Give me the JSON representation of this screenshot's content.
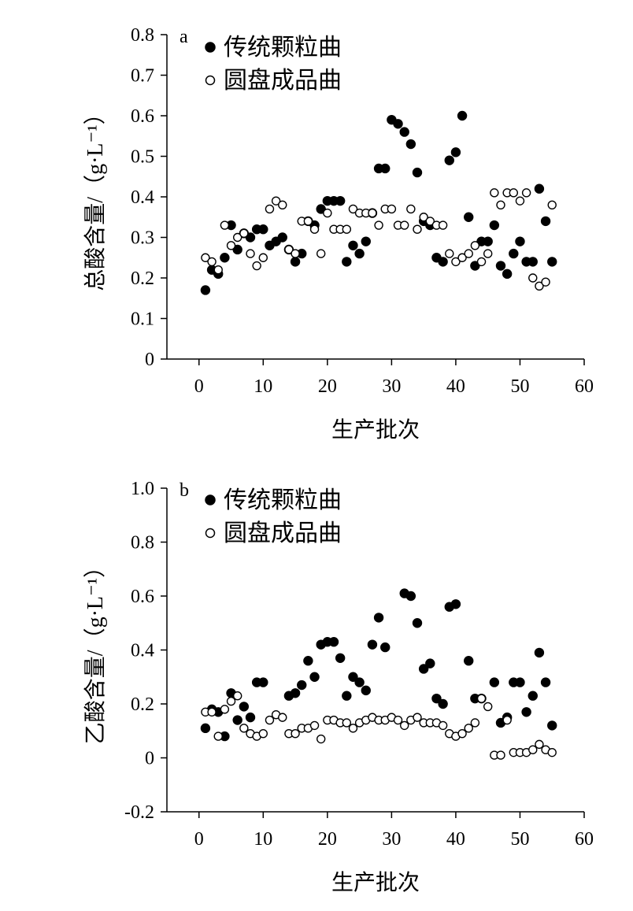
{
  "colors": {
    "ink": "#000000",
    "open_fill": "#ffffff"
  },
  "chart_data": [
    {
      "type": "scatter",
      "panel_label": "a",
      "xlabel": "生产批次",
      "ylabel": "总酸含量/（g·L⁻¹）",
      "xlim": [
        -5,
        60
      ],
      "ylim": [
        0,
        0.8
      ],
      "xticks": [
        0,
        10,
        20,
        30,
        40,
        50,
        60
      ],
      "yticks": [
        0,
        0.1,
        0.2,
        0.3,
        0.4,
        0.5,
        0.6,
        0.7,
        0.8
      ],
      "grid": false,
      "legend_position": "top-left",
      "series": [
        {
          "name": "传统颗粒曲",
          "marker": "filled-circle",
          "x": [
            1,
            2,
            3,
            4,
            5,
            6,
            7,
            8,
            9,
            10,
            11,
            12,
            13,
            14,
            15,
            16,
            17,
            18,
            19,
            20,
            21,
            22,
            23,
            24,
            25,
            26,
            27,
            28,
            29,
            30,
            31,
            32,
            33,
            34,
            35,
            36,
            37,
            38,
            39,
            40,
            41,
            42,
            43,
            44,
            45,
            46,
            47,
            48,
            49,
            50,
            51,
            52,
            53,
            54,
            55
          ],
          "y": [
            0.17,
            0.22,
            0.21,
            0.25,
            0.33,
            0.27,
            0.31,
            0.3,
            0.32,
            0.32,
            0.28,
            0.29,
            0.3,
            0.27,
            0.24,
            0.26,
            0.34,
            0.33,
            0.37,
            0.39,
            0.39,
            0.39,
            0.24,
            0.28,
            0.26,
            0.29,
            0.36,
            0.47,
            0.47,
            0.59,
            0.58,
            0.56,
            0.53,
            0.46,
            0.34,
            0.33,
            0.25,
            0.24,
            0.49,
            0.51,
            0.6,
            0.35,
            0.23,
            0.29,
            0.29,
            0.33,
            0.23,
            0.21,
            0.26,
            0.29,
            0.24,
            0.24,
            0.42,
            0.34,
            0.24
          ]
        },
        {
          "name": "圆盘成品曲",
          "marker": "open-circle",
          "x": [
            1,
            2,
            3,
            4,
            5,
            6,
            7,
            8,
            9,
            10,
            11,
            12,
            13,
            14,
            15,
            16,
            17,
            18,
            19,
            20,
            21,
            22,
            23,
            24,
            25,
            26,
            27,
            28,
            29,
            30,
            31,
            32,
            33,
            34,
            35,
            36,
            37,
            38,
            39,
            40,
            41,
            42,
            43,
            44,
            45,
            46,
            47,
            48,
            49,
            50,
            51,
            52,
            53,
            54,
            55
          ],
          "y": [
            0.25,
            0.24,
            0.22,
            0.33,
            0.28,
            0.3,
            0.31,
            0.26,
            0.23,
            0.25,
            0.37,
            0.39,
            0.38,
            0.27,
            0.26,
            0.34,
            0.34,
            0.32,
            0.26,
            0.36,
            0.32,
            0.32,
            0.32,
            0.37,
            0.36,
            0.36,
            0.36,
            0.33,
            0.37,
            0.37,
            0.33,
            0.33,
            0.37,
            0.32,
            0.35,
            0.34,
            0.33,
            0.33,
            0.26,
            0.24,
            0.25,
            0.26,
            0.28,
            0.24,
            0.26,
            0.41,
            0.38,
            0.41,
            0.41,
            0.39,
            0.41,
            0.2,
            0.18,
            0.19,
            0.38
          ]
        }
      ]
    },
    {
      "type": "scatter",
      "panel_label": "b",
      "xlabel": "生产批次",
      "ylabel": "乙酸含量/（g·L⁻¹）",
      "xlim": [
        -5,
        60
      ],
      "ylim": [
        -0.2,
        1.0
      ],
      "xticks": [
        0,
        10,
        20,
        30,
        40,
        50,
        60
      ],
      "yticks": [
        -0.2,
        0,
        0.2,
        0.4,
        0.6,
        0.8,
        1.0
      ],
      "ytick_labels": [
        "-0.2",
        "0",
        "0.2",
        "0.4",
        "0.6",
        "0.8",
        "1.0"
      ],
      "grid": false,
      "legend_position": "top-left",
      "series": [
        {
          "name": "传统颗粒曲",
          "marker": "filled-circle",
          "x": [
            1,
            2,
            3,
            4,
            5,
            6,
            7,
            8,
            9,
            10,
            14,
            15,
            16,
            17,
            18,
            19,
            20,
            21,
            22,
            23,
            24,
            25,
            26,
            27,
            28,
            29,
            32,
            33,
            34,
            35,
            36,
            37,
            38,
            39,
            40,
            42,
            43,
            44,
            46,
            47,
            48,
            49,
            50,
            51,
            52,
            53,
            54,
            55
          ],
          "y": [
            0.11,
            0.18,
            0.17,
            0.08,
            0.24,
            0.14,
            0.19,
            0.15,
            0.28,
            0.28,
            0.23,
            0.24,
            0.27,
            0.36,
            0.3,
            0.42,
            0.43,
            0.43,
            0.37,
            0.23,
            0.3,
            0.28,
            0.25,
            0.42,
            0.52,
            0.41,
            0.61,
            0.6,
            0.5,
            0.33,
            0.35,
            0.22,
            0.2,
            0.56,
            0.57,
            0.36,
            0.22,
            0.22,
            0.28,
            0.13,
            0.15,
            0.28,
            0.28,
            0.17,
            0.23,
            0.39,
            0.28,
            0.12
          ]
        },
        {
          "name": "圆盘成品曲",
          "marker": "open-circle",
          "x": [
            1,
            2,
            3,
            4,
            5,
            6,
            7,
            8,
            9,
            10,
            11,
            12,
            13,
            14,
            15,
            16,
            17,
            18,
            19,
            20,
            21,
            22,
            23,
            24,
            25,
            26,
            27,
            28,
            29,
            30,
            31,
            32,
            33,
            34,
            35,
            36,
            37,
            38,
            39,
            40,
            41,
            42,
            43,
            44,
            45,
            46,
            47,
            48,
            49,
            50,
            51,
            52,
            53,
            54,
            55
          ],
          "y": [
            0.17,
            0.17,
            0.08,
            0.18,
            0.21,
            0.23,
            0.11,
            0.09,
            0.08,
            0.09,
            0.14,
            0.16,
            0.15,
            0.09,
            0.09,
            0.11,
            0.11,
            0.12,
            0.07,
            0.14,
            0.14,
            0.13,
            0.13,
            0.11,
            0.13,
            0.14,
            0.15,
            0.14,
            0.14,
            0.15,
            0.14,
            0.12,
            0.14,
            0.15,
            0.13,
            0.13,
            0.13,
            0.12,
            0.09,
            0.08,
            0.09,
            0.11,
            0.13,
            0.22,
            0.19,
            0.01,
            0.01,
            0.14,
            0.02,
            0.02,
            0.02,
            0.03,
            0.05,
            0.03,
            0.02
          ]
        }
      ]
    }
  ]
}
